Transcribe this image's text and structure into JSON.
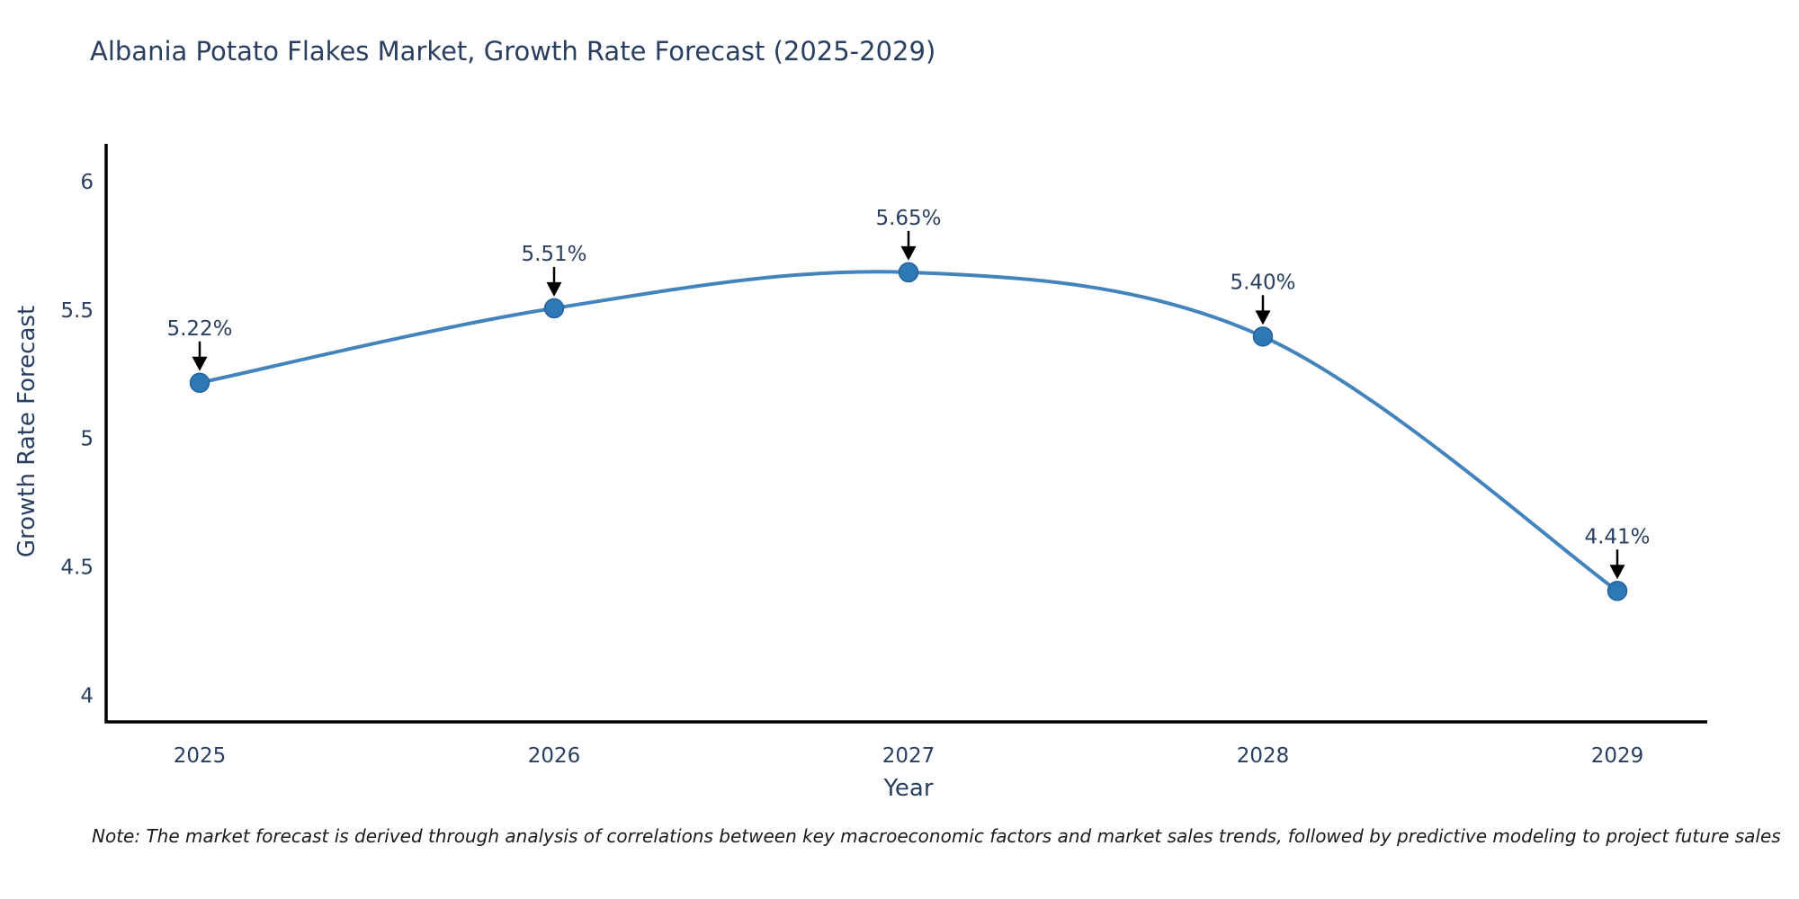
{
  "chart_data": {
    "type": "line",
    "title": "Albania Potato Flakes Market, Growth Rate Forecast (2025-2029)",
    "xlabel": "Year",
    "ylabel": "Growth Rate Forecast",
    "categories": [
      "2025",
      "2026",
      "2027",
      "2028",
      "2029"
    ],
    "series": [
      {
        "name": "Growth Rate Forecast",
        "values": [
          5.22,
          5.51,
          5.65,
          5.4,
          4.41
        ]
      }
    ],
    "point_labels": [
      "5.22%",
      "5.51%",
      "5.65%",
      "5.40%",
      "4.41%"
    ],
    "ytick_values": [
      4,
      4.5,
      5,
      5.5,
      6
    ],
    "ytick_labels": [
      "4",
      "4.5",
      "5",
      "5.5",
      "6"
    ],
    "ylim": [
      3.9,
      6.15
    ],
    "line_shape": "spline",
    "grid": false,
    "legend": "none",
    "colors": {
      "line": "#4484bd",
      "marker": "#2e78b6",
      "marker_edge": "#24619b",
      "axis": "#000000",
      "tick_text": "#2a3f5f",
      "annotation_text": "#2a3f5f",
      "annotation_arrow": "#000000"
    }
  },
  "note": {
    "text": "Note: The market forecast is derived through analysis of correlations between key macroeconomic factors and market sales trends, followed by predictive modeling to project future sales"
  }
}
